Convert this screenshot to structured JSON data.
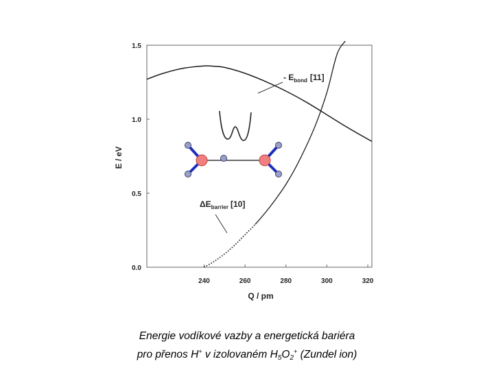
{
  "chart_data": {
    "type": "line",
    "xlabel": "Q / pm",
    "ylabel": "E / eV",
    "xlim": [
      212,
      322
    ],
    "ylim": [
      0,
      1.5
    ],
    "x_ticks": [
      "240",
      "260",
      "280",
      "300",
      "320"
    ],
    "y_ticks": [
      "0.0",
      "0.5",
      "1.0",
      "1.5"
    ],
    "grid": false,
    "series": [
      {
        "name": "- E_bond [11]",
        "x": [
          212,
          220,
          230,
          240,
          245,
          250,
          260,
          270,
          280,
          290,
          300,
          310,
          322
        ],
        "y": [
          1.27,
          1.31,
          1.345,
          1.36,
          1.358,
          1.35,
          1.31,
          1.255,
          1.19,
          1.115,
          1.03,
          0.945,
          0.85
        ]
      },
      {
        "name": "ΔE_barrier [10]",
        "x": [
          240,
          245,
          250,
          255,
          260,
          265,
          270,
          275,
          280,
          285,
          290,
          295,
          300,
          305,
          309
        ],
        "y": [
          0.0,
          0.04,
          0.09,
          0.15,
          0.22,
          0.29,
          0.37,
          0.46,
          0.56,
          0.68,
          0.82,
          0.98,
          1.18,
          1.44,
          1.75
        ]
      }
    ],
    "annotations": [
      {
        "main": "- E",
        "sub": "bond",
        "ref": "[11]"
      },
      {
        "main": "ΔE",
        "sub": "barrier",
        "ref": "[10]"
      }
    ]
  },
  "caption": {
    "line1": "Energie vodíkové vazby a energetická bariéra",
    "line2_a": "pro přenos H",
    "line2_b": " v izolovaném H",
    "line2_c": "O",
    "line2_d": " (Zundel ion)",
    "sup_plus": "+",
    "sub_five": "5",
    "sub_two": "2"
  },
  "colors": {
    "curve": "#1a1a1a",
    "oxygen": "#f08080",
    "hydrogen": "#9aa0c8",
    "bond": "#1c2fbf"
  }
}
